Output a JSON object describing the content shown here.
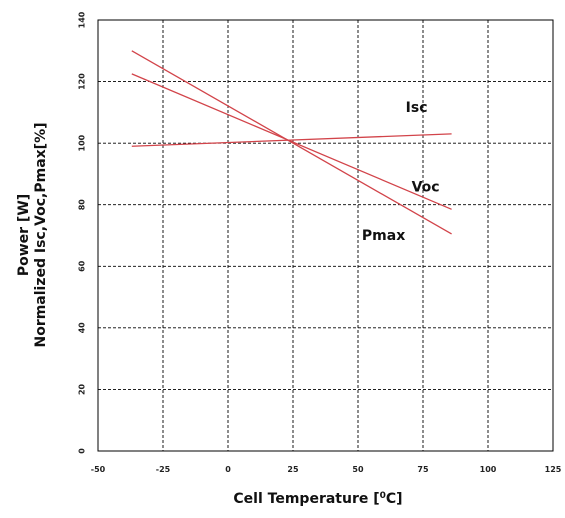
{
  "chart_data": {
    "type": "line",
    "title": "",
    "xlabel": "Cell Temperature [",
    "xlabel_sup": "0",
    "xlabel_end": "C]",
    "ylabel_line1": "Power  [W]",
    "ylabel_line2": "Normalized Isc,Voc,Pmax[%]",
    "xlim": [
      -50,
      125
    ],
    "ylim": [
      0,
      140
    ],
    "x_ticks": [
      -50,
      -25,
      0,
      25,
      50,
      75,
      100,
      125
    ],
    "y_ticks": [
      0,
      20,
      40,
      60,
      80,
      100,
      120,
      140
    ],
    "x_tick_labels": [
      "-50",
      "-25",
      "0",
      "25",
      "50",
      "75",
      "100",
      "125"
    ],
    "y_tick_labels": [
      "0",
      "20",
      "40",
      "60",
      "80",
      "100",
      "120",
      "140"
    ],
    "grid": true,
    "line_color": "#d2444a",
    "series": [
      {
        "name": "Isc",
        "x": [
          -37,
          86
        ],
        "y": [
          99,
          103
        ]
      },
      {
        "name": "Voc",
        "x": [
          -37,
          86
        ],
        "y": [
          122.5,
          78.5
        ]
      },
      {
        "name": "Pmax",
        "x": [
          -37,
          86
        ],
        "y": [
          130,
          70.5
        ]
      }
    ]
  }
}
